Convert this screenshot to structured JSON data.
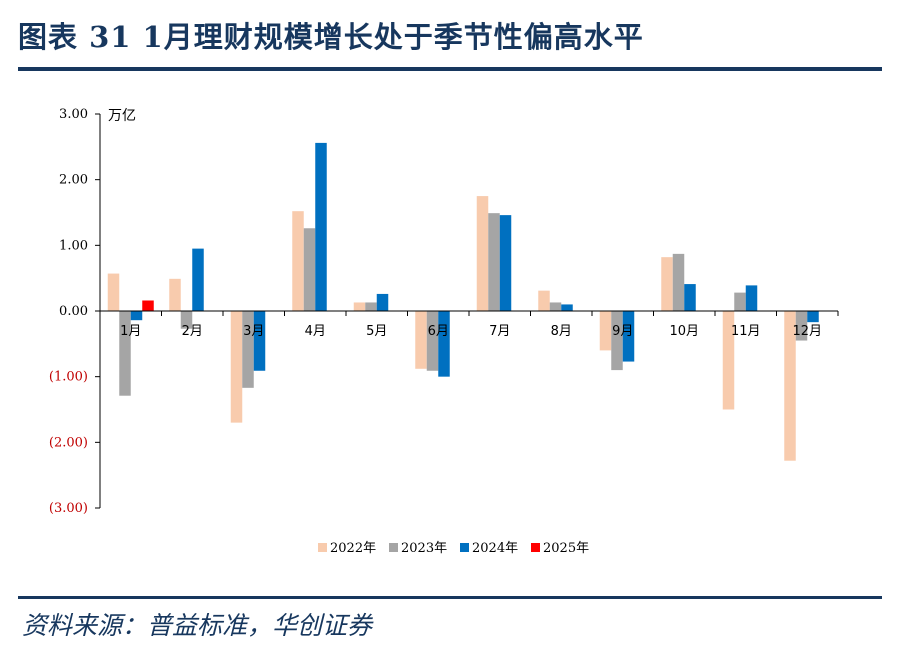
{
  "header": {
    "title": "图表 31   1月理财规模增长处于季节性偏高水平"
  },
  "footer": {
    "source": "资料来源：普益标准，华创证券"
  },
  "chart_data": {
    "type": "bar",
    "title": "1月理财规模增长处于季节性偏高水平",
    "ylabel": "万亿",
    "xlabel": "",
    "ylim": [
      -3,
      3
    ],
    "yticks": [
      3,
      2,
      1,
      0,
      -1,
      -2,
      -3
    ],
    "ytick_labels": [
      "3.00",
      "2.00",
      "1.00",
      "0.00",
      "(1.00)",
      "(2.00)",
      "(3.00)"
    ],
    "categories": [
      "1月",
      "2月",
      "3月",
      "4月",
      "5月",
      "6月",
      "7月",
      "8月",
      "9月",
      "10月",
      "11月",
      "12月"
    ],
    "legend_position": "bottom",
    "series": [
      {
        "name": "2022年",
        "color": "#f8cbad",
        "values": [
          0.57,
          0.49,
          -1.7,
          1.52,
          0.13,
          -0.88,
          1.75,
          0.31,
          -0.6,
          0.82,
          -1.5,
          -2.28
        ]
      },
      {
        "name": "2023年",
        "color": "#a5a5a5",
        "values": [
          -1.29,
          -0.27,
          -1.17,
          1.26,
          0.13,
          -0.91,
          1.49,
          0.13,
          -0.9,
          0.87,
          0.28,
          -0.45
        ]
      },
      {
        "name": "2024年",
        "color": "#0070c0",
        "values": [
          -0.14,
          0.95,
          -0.91,
          2.56,
          0.26,
          -1.0,
          1.46,
          0.1,
          -0.77,
          0.41,
          0.39,
          -0.17
        ]
      },
      {
        "name": "2025年",
        "color": "#ff0000",
        "values": [
          0.16,
          null,
          null,
          null,
          null,
          null,
          null,
          null,
          null,
          null,
          null,
          null
        ]
      }
    ]
  }
}
